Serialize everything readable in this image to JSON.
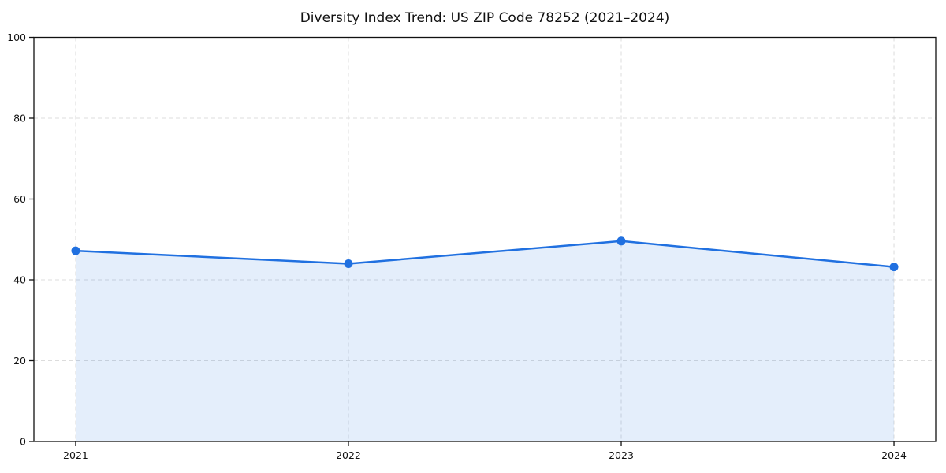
{
  "chart_data": {
    "type": "area",
    "title": "Diversity Index Trend: US ZIP Code 78252 (2021–2024)",
    "categories": [
      "2021",
      "2022",
      "2023",
      "2024"
    ],
    "x": [
      2021,
      2022,
      2023,
      2024
    ],
    "series": [
      {
        "name": "Diversity Index",
        "values": [
          47.2,
          44.0,
          49.6,
          43.2
        ]
      }
    ],
    "xlabel": "",
    "ylabel": "",
    "ylim": [
      0,
      100
    ],
    "yticks": [
      0,
      20,
      40,
      60,
      80,
      100
    ],
    "grid": true,
    "grid_style": "dashed",
    "legend_position": "none",
    "colors": {
      "line": "#2070e0",
      "marker": "#2070e0",
      "fill": "rgba(32, 112, 224, 0.12)",
      "gridline": "#dcdcdc",
      "axis": "#111111",
      "tick_label": "#111111",
      "background": "#ffffff"
    }
  }
}
